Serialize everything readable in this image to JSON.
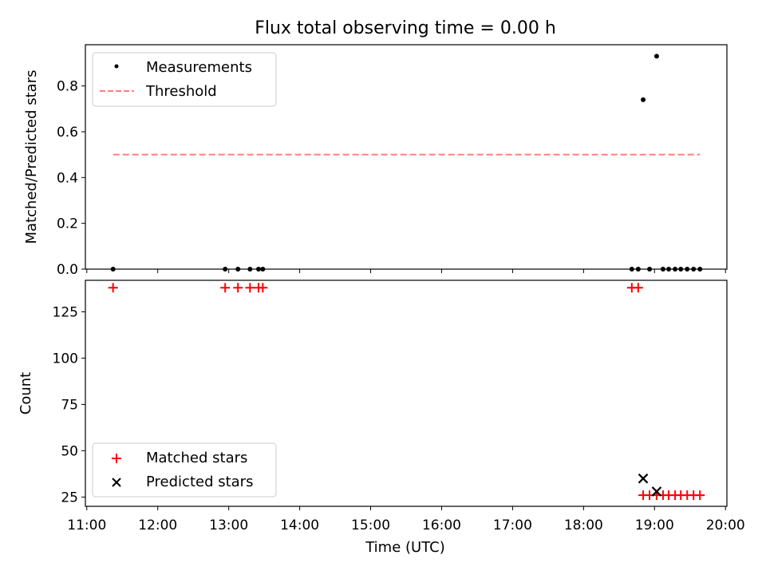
{
  "chart_data": [
    {
      "type": "scatter",
      "title": "Flux total observing time = 0.00 h",
      "xlabel": "",
      "ylabel": "Matched/Predicted stars",
      "x_unit": "hours (UTC)",
      "xlim": [
        10.98,
        20.02
      ],
      "ylim": [
        0,
        0.98
      ],
      "yticks": [
        0.0,
        0.2,
        0.4,
        0.6,
        0.8
      ],
      "ytick_labels": [
        "0.0",
        "0.2",
        "0.4",
        "0.6",
        "0.8"
      ],
      "legend_position": "top-left",
      "series": [
        {
          "name": "Measurements",
          "kind": "scatter",
          "color": "#000000",
          "x": [
            11.37,
            12.95,
            13.13,
            13.3,
            13.42,
            13.48,
            18.68,
            18.77,
            18.84,
            18.93,
            19.03,
            19.12,
            19.2,
            19.29,
            19.37,
            19.46,
            19.55,
            19.64
          ],
          "y": [
            0.0,
            0.0,
            0.0,
            0.0,
            0.0,
            0.0,
            0.0,
            0.0,
            0.74,
            0.0,
            0.93,
            0.0,
            0.0,
            0.0,
            0.0,
            0.0,
            0.0,
            0.0
          ]
        },
        {
          "name": "Threshold",
          "kind": "line",
          "style": "dashed",
          "color": "#ff7f7f",
          "x": [
            11.37,
            19.64
          ],
          "y": [
            0.5,
            0.5
          ]
        }
      ]
    },
    {
      "type": "scatter",
      "title": "",
      "xlabel": "Time (UTC)",
      "ylabel": "Count",
      "x_unit": "hours (UTC)",
      "xlim": [
        10.98,
        20.02
      ],
      "ylim": [
        20,
        142
      ],
      "yticks": [
        25,
        50,
        75,
        100,
        125
      ],
      "ytick_labels": [
        "25",
        "50",
        "75",
        "100",
        "125"
      ],
      "xticks": [
        11,
        12,
        13,
        14,
        15,
        16,
        17,
        18,
        19,
        20
      ],
      "xtick_labels": [
        "11:00",
        "12:00",
        "13:00",
        "14:00",
        "15:00",
        "16:00",
        "17:00",
        "18:00",
        "19:00",
        "20:00"
      ],
      "legend_position": "bottom-left",
      "series": [
        {
          "name": "Matched stars",
          "kind": "scatter",
          "marker": "plus",
          "color": "#ff0000",
          "x": [
            11.37,
            12.95,
            13.13,
            13.3,
            13.42,
            13.48,
            18.68,
            18.77,
            18.84,
            18.93,
            19.03,
            19.12,
            19.2,
            19.29,
            19.37,
            19.46,
            19.55,
            19.64
          ],
          "y": [
            138,
            138,
            138,
            138,
            138,
            138,
            138,
            138,
            26,
            26,
            26,
            26,
            26,
            26,
            26,
            26,
            26,
            26
          ]
        },
        {
          "name": "Predicted stars",
          "kind": "scatter",
          "marker": "x",
          "color": "#000000",
          "x": [
            18.84,
            19.03
          ],
          "y": [
            35,
            28
          ]
        }
      ]
    }
  ]
}
